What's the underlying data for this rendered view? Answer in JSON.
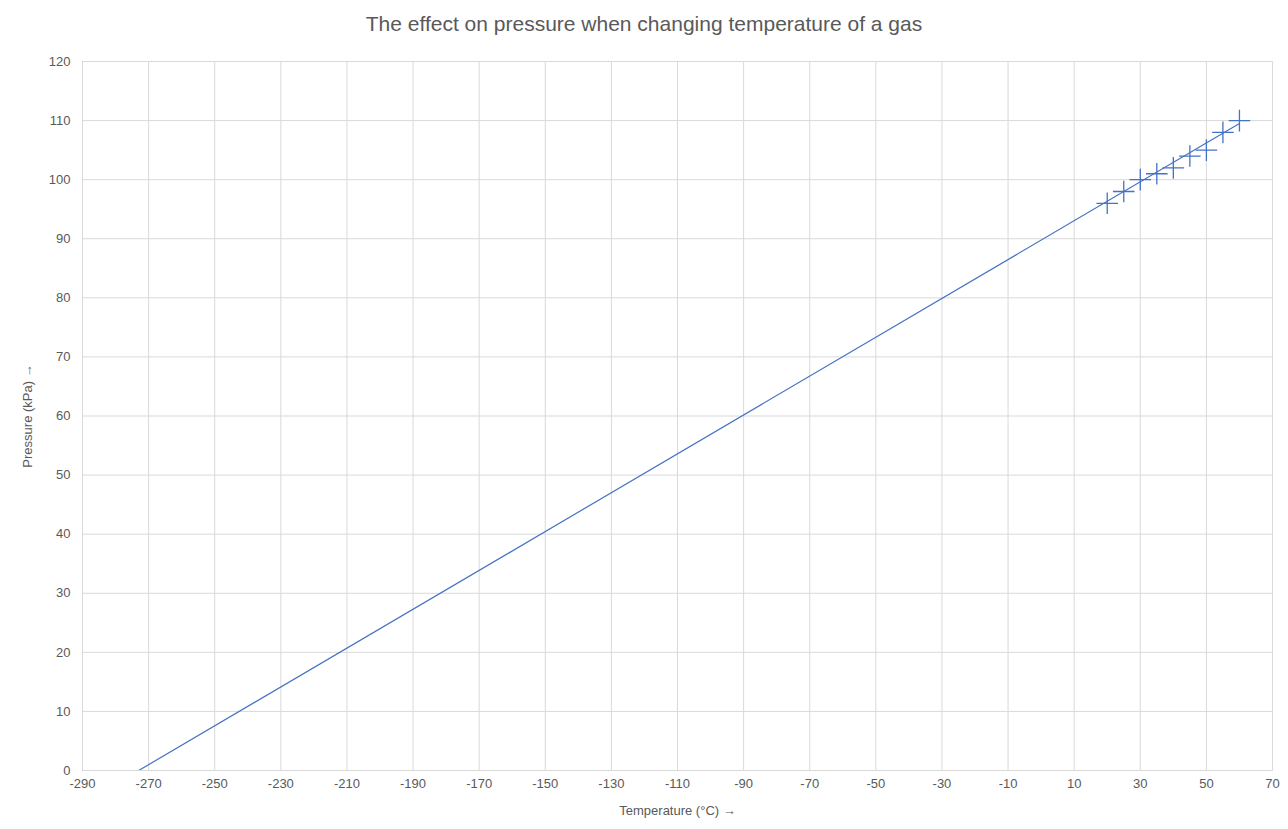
{
  "chart_data": {
    "type": "scatter",
    "title": "The effect on pressure when changing temperature of a gas",
    "x_label": "Temperature (°C)",
    "y_label": "Pressure (kPa)",
    "series": [
      {
        "type": "scatter",
        "marker": "plus",
        "color": "#4472c4",
        "x": [
          20,
          25,
          30,
          35,
          40,
          45,
          50,
          55,
          60
        ],
        "values": [
          96,
          98,
          100,
          101,
          102,
          104,
          105,
          108,
          110
        ]
      },
      {
        "type": "line",
        "line_style": "solid",
        "color": "#4472c4",
        "x": [
          -273,
          60
        ],
        "values": [
          0,
          109.5
        ]
      }
    ],
    "xlim": [
      -290,
      70
    ],
    "xticks": [
      -290,
      -270,
      -250,
      -230,
      -210,
      -190,
      -170,
      -150,
      -130,
      -110,
      -90,
      -70,
      -50,
      -30,
      -10,
      10,
      30,
      50,
      70
    ],
    "ylim": [
      0,
      120
    ],
    "yticks": [
      0,
      10,
      20,
      30,
      40,
      50,
      60,
      70,
      80,
      90,
      100,
      110,
      120
    ],
    "grid": true
  }
}
